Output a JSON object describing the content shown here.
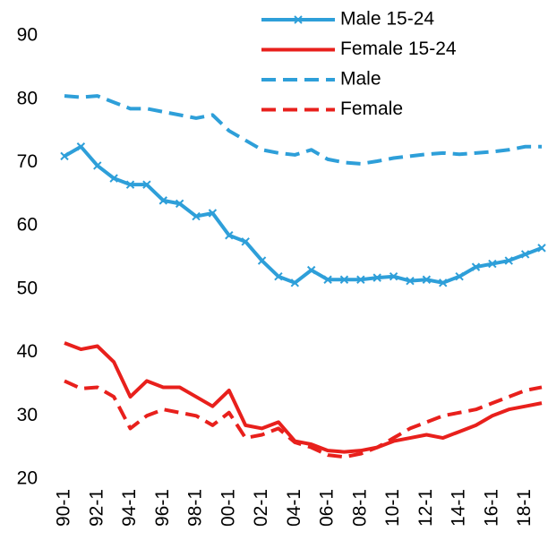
{
  "chart_data": {
    "type": "line",
    "categories": [
      "90-1",
      null,
      "92-1",
      null,
      "94-1",
      null,
      "96-1",
      null,
      "98-1",
      null,
      "00-1",
      null,
      "02-1",
      null,
      "04-1",
      null,
      "06-1",
      null,
      "08-1",
      null,
      "10-1",
      null,
      "12-1",
      null,
      "14-1",
      null,
      "16-1",
      null,
      "18-1",
      null
    ],
    "series": [
      {
        "name": "Male 15-24",
        "color": "#2e9fd9",
        "style": "solid",
        "marker": "x",
        "values": [
          71,
          72.5,
          69.5,
          67.5,
          66.5,
          66.5,
          64,
          63.5,
          61.5,
          62,
          58.5,
          57.5,
          54.5,
          52,
          51,
          53,
          51.5,
          51.5,
          51.5,
          51.8,
          52,
          51.3,
          51.5,
          51,
          52,
          53.5,
          54,
          54.5,
          55.5,
          56.5
        ]
      },
      {
        "name": "Female 15-24",
        "color": "#e8201c",
        "style": "solid",
        "values": [
          41.5,
          40.5,
          41,
          38.5,
          33,
          35.5,
          34.5,
          34.5,
          33,
          31.5,
          34,
          28.5,
          28,
          29,
          26,
          25.5,
          24.5,
          24.3,
          24.5,
          25,
          26,
          26.5,
          27,
          26.5,
          27.5,
          28.5,
          30,
          31,
          31.5,
          32
        ]
      },
      {
        "name": "Male",
        "color": "#2e9fd9",
        "style": "dashed",
        "values": [
          80.5,
          80.3,
          80.5,
          79.5,
          78.5,
          78.5,
          78,
          77.5,
          77,
          77.5,
          75,
          73.5,
          72,
          71.5,
          71.2,
          72,
          70.5,
          70,
          69.8,
          70.2,
          70.7,
          71,
          71.3,
          71.5,
          71.3,
          71.5,
          71.7,
          72,
          72.5,
          72.5
        ]
      },
      {
        "name": "Female",
        "color": "#e8201c",
        "style": "dashed",
        "values": [
          35.5,
          34.3,
          34.5,
          33,
          28,
          30,
          31,
          30.5,
          30,
          28.5,
          30.5,
          26.5,
          27,
          28,
          25.8,
          25,
          23.8,
          23.5,
          24,
          25,
          26.5,
          28,
          29,
          30,
          30.5,
          31,
          32,
          33,
          34,
          34.5
        ]
      }
    ],
    "ylim": [
      20,
      90
    ],
    "yticks": [
      20,
      30,
      40,
      50,
      60,
      70,
      80,
      90
    ],
    "grid": false,
    "legend": "top-right"
  }
}
